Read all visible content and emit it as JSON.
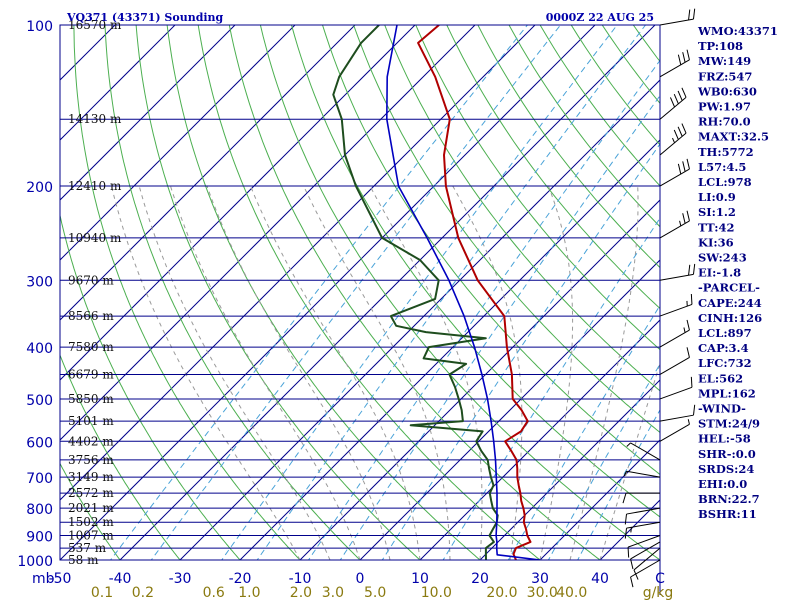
{
  "header": {
    "station": "VQ371 (43371) Sounding",
    "time": "0000Z 22 AUG 25"
  },
  "indices": [
    "WMO:43371",
    "TP:108",
    "MW:149",
    "FRZ:547",
    "WB0:630",
    "PW:1.97",
    "RH:70.0",
    "MAXT:32.5",
    "TH:5772",
    "L57:4.5",
    "LCL:978",
    "LI:0.9",
    "SI:1.2",
    "TT:42",
    "KI:36",
    "SW:243",
    "EI:-1.8",
    "-PARCEL-",
    "CAPE:244",
    "CINH:126",
    "LCL:897",
    "CAP:3.4",
    "LFC:732",
    "EL:562",
    "MPL:162",
    "-WIND-",
    "STM:24/9",
    "HEL:-58",
    "SHR-:0.0",
    "SRDS:24",
    "EHI:0.0",
    "BRN:22.7",
    "BSHR:11"
  ],
  "colors": {
    "isobar": "#00008b",
    "isotherm": "#00008b",
    "dry_adiabat": "#4caf50",
    "moist_adiabat": "#9a9a9a",
    "mixing_ratio": "#4aa3d8",
    "temperature": "#b00000",
    "dewpoint": "#1e4d1e",
    "parcel": "#0000c0",
    "axis_label": "#0000aa",
    "mixing_label": "#8a7a10"
  },
  "chart_data": {
    "type": "skew-t",
    "pressure_label": "mb",
    "mixing_ratio_unit": "g/kg",
    "pressure_levels": [
      {
        "p": 100,
        "label": "100",
        "height": "16570 m"
      },
      {
        "p": 150,
        "label": "",
        "height": "14130 m"
      },
      {
        "p": 200,
        "label": "200",
        "height": "12410 m"
      },
      {
        "p": 250,
        "label": "",
        "height": "10940 m"
      },
      {
        "p": 300,
        "label": "300",
        "height": "9670 m"
      },
      {
        "p": 350,
        "label": "",
        "height": "8566 m"
      },
      {
        "p": 400,
        "label": "400",
        "height": "7580 m"
      },
      {
        "p": 450,
        "label": "",
        "height": "6679 m"
      },
      {
        "p": 500,
        "label": "500",
        "height": "5850 m"
      },
      {
        "p": 550,
        "label": "",
        "height": "5101 m"
      },
      {
        "p": 600,
        "label": "600",
        "height": "4402 m"
      },
      {
        "p": 650,
        "label": "",
        "height": "3756 m"
      },
      {
        "p": 700,
        "label": "700",
        "height": "3149 m"
      },
      {
        "p": 750,
        "label": "",
        "height": "2572 m"
      },
      {
        "p": 800,
        "label": "800",
        "height": "2021 m"
      },
      {
        "p": 850,
        "label": "",
        "height": "1502 m"
      },
      {
        "p": 900,
        "label": "900",
        "height": "1007 m"
      },
      {
        "p": 950,
        "label": "",
        "height": "537 m"
      },
      {
        "p": 1000,
        "label": "1000",
        "height": "58 m"
      }
    ],
    "temperature_ticks": [
      -50,
      -40,
      -30,
      -20,
      -10,
      0,
      10,
      20,
      30,
      40
    ],
    "temperature_tick_labels": [
      "-50",
      "-40",
      "-30",
      "-20",
      "-10",
      "0",
      "10",
      "20",
      "30",
      "40"
    ],
    "top_right_tick_label": "C",
    "mixing_ratio_lines": [
      0.1,
      0.2,
      0.6,
      1.0,
      2.0,
      3.0,
      5.0,
      10.0,
      20.0,
      30.0,
      40.0
    ],
    "mixing_ratio_labels": [
      "0.1",
      "0.2",
      "0.6",
      "1.0",
      "2.0",
      "3.0",
      "5.0",
      "10.0",
      "20.0",
      "30.0",
      "40.0"
    ],
    "dry_adiabats_C": [
      -80,
      -70,
      -60,
      -50,
      -40,
      -30,
      -20,
      -10,
      0,
      10,
      20,
      30,
      40,
      50,
      60,
      70,
      80,
      90,
      100,
      110,
      120,
      130,
      140,
      150,
      160,
      170,
      180
    ],
    "moist_adiabats_C": [
      -10,
      -5,
      0,
      5,
      10,
      15,
      20,
      25,
      30,
      35,
      40
    ],
    "series": [
      {
        "name": "Temperature",
        "points": [
          [
            1000,
            26.0
          ],
          [
            975,
            24.6
          ],
          [
            950,
            24.0
          ],
          [
            925,
            25.4
          ],
          [
            900,
            23.8
          ],
          [
            875,
            22.5
          ],
          [
            850,
            21.0
          ],
          [
            825,
            20.0
          ],
          [
            800,
            18.6
          ],
          [
            775,
            17.0
          ],
          [
            750,
            15.6
          ],
          [
            725,
            14.0
          ],
          [
            700,
            12.4
          ],
          [
            675,
            11.0
          ],
          [
            650,
            9.4
          ],
          [
            625,
            7.0
          ],
          [
            600,
            4.4
          ],
          [
            575,
            5.4
          ],
          [
            550,
            4.8
          ],
          [
            525,
            2.0
          ],
          [
            500,
            -1.4
          ],
          [
            450,
            -5.6
          ],
          [
            400,
            -11.0
          ],
          [
            350,
            -16.6
          ],
          [
            300,
            -27.0
          ],
          [
            250,
            -37.3
          ],
          [
            200,
            -48.0
          ],
          [
            175,
            -53.5
          ],
          [
            150,
            -58.5
          ],
          [
            125,
            -68.0
          ],
          [
            108,
            -76.5
          ],
          [
            100,
            -76.0
          ]
        ]
      },
      {
        "name": "Dewpoint",
        "points": [
          [
            1000,
            21.0
          ],
          [
            975,
            20.0
          ],
          [
            950,
            19.0
          ],
          [
            925,
            19.3
          ],
          [
            900,
            17.5
          ],
          [
            875,
            17.0
          ],
          [
            850,
            16.5
          ],
          [
            825,
            15.5
          ],
          [
            800,
            13.5
          ],
          [
            775,
            12.0
          ],
          [
            750,
            10.5
          ],
          [
            725,
            9.8
          ],
          [
            700,
            8.0
          ],
          [
            675,
            6.3
          ],
          [
            650,
            4.6
          ],
          [
            625,
            2.0
          ],
          [
            600,
            -0.4
          ],
          [
            575,
            -1.0
          ],
          [
            560,
            -14.0
          ],
          [
            550,
            -6.0
          ],
          [
            525,
            -8.0
          ],
          [
            500,
            -10.4
          ],
          [
            475,
            -13.0
          ],
          [
            450,
            -16.0
          ],
          [
            430,
            -15.0
          ],
          [
            420,
            -23.0
          ],
          [
            400,
            -24.0
          ],
          [
            385,
            -16.0
          ],
          [
            375,
            -27.0
          ],
          [
            365,
            -33.0
          ],
          [
            350,
            -35.5
          ],
          [
            325,
            -31.0
          ],
          [
            300,
            -33.5
          ],
          [
            275,
            -40.0
          ],
          [
            250,
            -50.0
          ],
          [
            200,
            -63.0
          ],
          [
            175,
            -70.0
          ],
          [
            150,
            -76.5
          ],
          [
            135,
            -82.0
          ],
          [
            125,
            -84.0
          ],
          [
            108,
            -86.0
          ],
          [
            100,
            -86.0
          ]
        ]
      },
      {
        "name": "Parcel",
        "points": [
          [
            1000,
            30.0
          ],
          [
            978,
            22.0
          ],
          [
            950,
            20.8
          ],
          [
            925,
            19.8
          ],
          [
            900,
            18.6
          ],
          [
            850,
            16.5
          ],
          [
            800,
            14.2
          ],
          [
            750,
            11.7
          ],
          [
            700,
            8.9
          ],
          [
            650,
            5.9
          ],
          [
            600,
            2.5
          ],
          [
            550,
            -1.3
          ],
          [
            500,
            -5.6
          ],
          [
            450,
            -10.6
          ],
          [
            400,
            -16.4
          ],
          [
            350,
            -23.3
          ],
          [
            300,
            -31.8
          ],
          [
            250,
            -42.5
          ],
          [
            200,
            -55.9
          ],
          [
            150,
            -69.0
          ],
          [
            125,
            -76.0
          ],
          [
            100,
            -83.0
          ]
        ]
      }
    ],
    "wind_barbs": [
      {
        "p": 1000,
        "dir": 240,
        "kt": 10
      },
      {
        "p": 950,
        "dir": 230,
        "kt": 10
      },
      {
        "p": 925,
        "dir": 240,
        "kt": 12
      },
      {
        "p": 900,
        "dir": 250,
        "kt": 12
      },
      {
        "p": 850,
        "dir": 260,
        "kt": 15
      },
      {
        "p": 800,
        "dir": 260,
        "kt": 14
      },
      {
        "p": 750,
        "dir": 270,
        "kt": 10
      },
      {
        "p": 700,
        "dir": 280,
        "kt": 8
      },
      {
        "p": 650,
        "dir": 300,
        "kt": 6
      },
      {
        "p": 600,
        "dir": 60,
        "kt": 5
      },
      {
        "p": 550,
        "dir": 80,
        "kt": 10
      },
      {
        "p": 500,
        "dir": 70,
        "kt": 10
      },
      {
        "p": 450,
        "dir": 60,
        "kt": 12
      },
      {
        "p": 400,
        "dir": 60,
        "kt": 15
      },
      {
        "p": 350,
        "dir": 70,
        "kt": 18
      },
      {
        "p": 300,
        "dir": 80,
        "kt": 20
      },
      {
        "p": 250,
        "dir": 60,
        "kt": 25
      },
      {
        "p": 200,
        "dir": 60,
        "kt": 30
      },
      {
        "p": 175,
        "dir": 50,
        "kt": 35
      },
      {
        "p": 150,
        "dir": 50,
        "kt": 40
      },
      {
        "p": 125,
        "dir": 60,
        "kt": 30
      },
      {
        "p": 100,
        "dir": 80,
        "kt": 20
      }
    ]
  }
}
